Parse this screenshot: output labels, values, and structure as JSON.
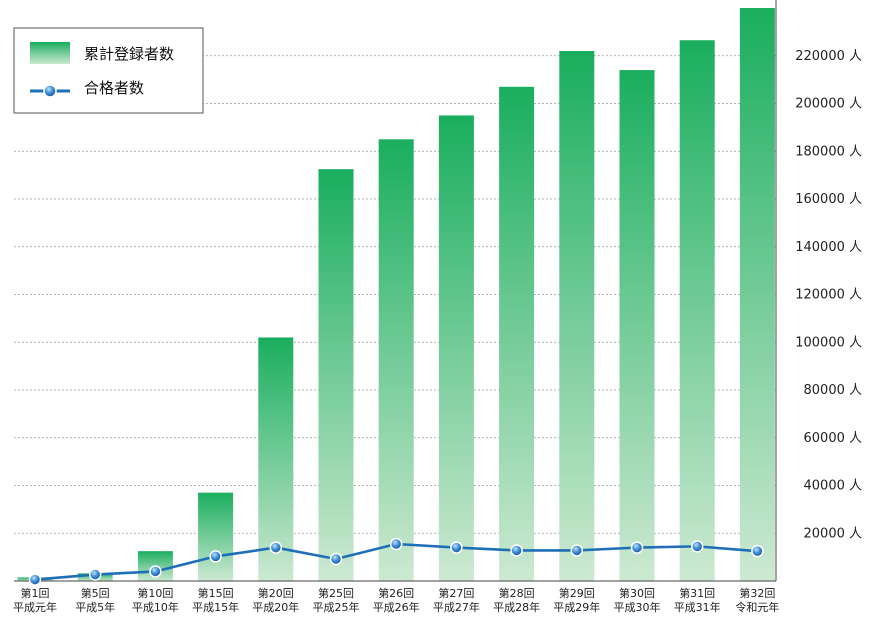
{
  "chart_data": {
    "type": "bar",
    "title": "",
    "xlabel": "",
    "ylabel": "",
    "ylim": [
      0,
      240000
    ],
    "grid": true,
    "legend_placement": "top-left",
    "y_ticks": [
      20000,
      40000,
      60000,
      80000,
      100000,
      120000,
      140000,
      160000,
      180000,
      200000,
      220000
    ],
    "y_tick_labels": [
      "20000 人",
      "40000 人",
      "60000 人",
      "80000 人",
      "100000 人",
      "120000 人",
      "140000 人",
      "160000 人",
      "180000 人",
      "200000 人",
      "220000 人"
    ],
    "categories": [
      {
        "line1": "第1回",
        "line2": "平成元年"
      },
      {
        "line1": "第5回",
        "line2": "平成5年"
      },
      {
        "line1": "第10回",
        "line2": "平成10年"
      },
      {
        "line1": "第15回",
        "line2": "平成15年"
      },
      {
        "line1": "第20回",
        "line2": "平成20年"
      },
      {
        "line1": "第25回",
        "line2": "平成25年"
      },
      {
        "line1": "第26回",
        "line2": "平成26年"
      },
      {
        "line1": "第27回",
        "line2": "平成27年"
      },
      {
        "line1": "第28回",
        "line2": "平成28年"
      },
      {
        "line1": "第29回",
        "line2": "平成29年"
      },
      {
        "line1": "第30回",
        "line2": "平成30年"
      },
      {
        "line1": "第31回",
        "line2": "平成31年"
      },
      {
        "line1": "第32回",
        "line2": "令和元年"
      }
    ],
    "series": [
      {
        "name": "累計登録者数",
        "kind": "bar",
        "color_top": "#1aae5e",
        "color_bottom": "#cde9d2",
        "values": [
          1500,
          3200,
          12500,
          37000,
          102000,
          172500,
          185000,
          195000,
          207000,
          222000,
          214000,
          226500,
          240000
        ]
      },
      {
        "name": "合格者数",
        "kind": "line",
        "color": "#1f6fb8",
        "values": [
          600,
          2700,
          4000,
          10300,
          14000,
          9200,
          15500,
          14000,
          12800,
          12800,
          14000,
          14500,
          12500
        ]
      }
    ]
  }
}
